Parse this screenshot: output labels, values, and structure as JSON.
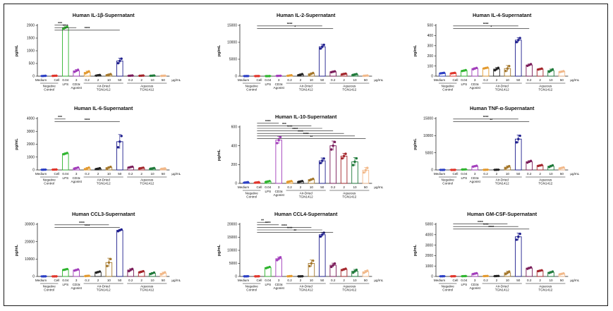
{
  "figure": {
    "unit_label": "µg/mL",
    "ylabel": "pg/mL",
    "colors": [
      "#2b3fc4",
      "#e0352b",
      "#2fb52f",
      "#a23dbb",
      "#e39a2f",
      "#222222",
      "#a5782c",
      "#1f1f8e",
      "#7a1c5a",
      "#a3242a",
      "#1f7a3a",
      "#f2b98a"
    ],
    "groups": [
      {
        "label": "Negative Control",
        "tick_labels": [
          "Medium",
          "Cell"
        ]
      },
      {
        "label": "LPS",
        "tick_labels": [
          "0.04"
        ]
      },
      {
        "label": "CD3ε Agonist",
        "tick_labels": [
          "3"
        ]
      },
      {
        "label": "Air-Dried TGN1412",
        "tick_labels": [
          "0.2",
          "2",
          "10",
          "50"
        ]
      },
      {
        "label": "Aqueous TGN1412",
        "tick_labels": [
          "0.2",
          "2",
          "10",
          "50"
        ]
      }
    ]
  },
  "chart_data": [
    {
      "type": "bar",
      "title": "Human IL-1β-Supernatant",
      "ylabel": "pg/mL",
      "unit": "µg/mL",
      "ylim": [
        0,
        2000
      ],
      "yticks": [
        0,
        500,
        1000,
        1500,
        2000
      ],
      "categories": [
        "Medium",
        "Cell",
        "0.04",
        "3",
        "0.2",
        "2",
        "10",
        "50",
        "0.2",
        "2",
        "10",
        "50"
      ],
      "values": [
        10,
        15,
        1910,
        210,
        150,
        35,
        60,
        600,
        20,
        20,
        20,
        15
      ],
      "errors": [
        5,
        5,
        40,
        50,
        50,
        15,
        25,
        110,
        5,
        5,
        5,
        5
      ],
      "significance": [
        {
          "from": 1,
          "to": 2,
          "stars": "***"
        },
        {
          "from": 1,
          "to": 3,
          "stars": "****"
        },
        {
          "from": 1,
          "to": 7,
          "stars": "****"
        }
      ]
    },
    {
      "type": "bar",
      "title": "Human IL-2-Supernatant",
      "ylabel": "pg/mL",
      "unit": "µg/mL",
      "ylim": [
        0,
        15000
      ],
      "yticks": [
        0,
        5000,
        10000,
        15000
      ],
      "categories": [
        "Medium",
        "Cell",
        "0.04",
        "3",
        "0.2",
        "2",
        "10",
        "50",
        "0.2",
        "2",
        "10",
        "50"
      ],
      "values": [
        30,
        30,
        20,
        100,
        200,
        450,
        700,
        8700,
        1300,
        650,
        500,
        150
      ],
      "errors": [
        10,
        10,
        10,
        30,
        100,
        200,
        300,
        700,
        150,
        120,
        150,
        50
      ],
      "significance": [
        {
          "from": 1,
          "to": 7,
          "stars": "****"
        },
        {
          "from": 1,
          "to": 8,
          "stars": "*"
        }
      ]
    },
    {
      "type": "bar",
      "title": "Human IL-4-Supernatant",
      "ylabel": "pg/mL",
      "unit": "µg/mL",
      "ylim": [
        0,
        500
      ],
      "yticks": [
        0,
        100,
        200,
        300,
        400,
        500
      ],
      "categories": [
        "Medium",
        "Cell",
        "0.04",
        "3",
        "0.2",
        "2",
        "10",
        "50",
        "0.2",
        "2",
        "10",
        "50"
      ],
      "values": [
        30,
        30,
        55,
        75,
        80,
        70,
        75,
        355,
        110,
        70,
        55,
        45
      ],
      "errors": [
        3,
        3,
        5,
        8,
        5,
        15,
        30,
        25,
        10,
        5,
        15,
        5
      ],
      "significance": [
        {
          "from": 1,
          "to": 7,
          "stars": "****"
        },
        {
          "from": 1,
          "to": 8,
          "stars": "*"
        }
      ]
    },
    {
      "type": "bar",
      "title": "Human IL-6-Supernatant",
      "ylabel": "pg/mL",
      "unit": "µg/mL",
      "ylim": [
        0,
        4000
      ],
      "yticks": [
        0,
        1000,
        2000,
        3000,
        4000
      ],
      "categories": [
        "Medium",
        "Cell",
        "0.04",
        "3",
        "0.2",
        "2",
        "10",
        "50",
        "0.2",
        "2",
        "10",
        "50"
      ],
      "values": [
        20,
        30,
        1270,
        150,
        120,
        100,
        180,
        2200,
        220,
        150,
        120,
        100
      ],
      "errors": [
        5,
        5,
        60,
        50,
        80,
        40,
        80,
        550,
        40,
        30,
        30,
        20
      ],
      "significance": [
        {
          "from": 1,
          "to": 2,
          "stars": "***"
        },
        {
          "from": 1,
          "to": 7,
          "stars": "****"
        }
      ]
    },
    {
      "type": "bar",
      "title": "Human IL-10-Supernatant",
      "ylabel": "pg/mL",
      "unit": "µg/mL",
      "ylim": [
        0,
        600
      ],
      "yticks": [
        0,
        200,
        400,
        600
      ],
      "categories": [
        "Medium",
        "Cell",
        "0.04",
        "3",
        "0.2",
        "2",
        "10",
        "50",
        "0.2",
        "2",
        "10",
        "50"
      ],
      "values": [
        10,
        10,
        20,
        460,
        20,
        20,
        40,
        240,
        400,
        290,
        230,
        140
      ],
      "errors": [
        3,
        3,
        5,
        40,
        5,
        5,
        10,
        30,
        50,
        30,
        45,
        30
      ],
      "significance": [
        {
          "from": 1,
          "to": 3,
          "stars": "****"
        },
        {
          "from": 1,
          "to": 6,
          "stars": "***"
        },
        {
          "from": 1,
          "to": 7,
          "stars": "****"
        },
        {
          "from": 1,
          "to": 8,
          "stars": "****"
        },
        {
          "from": 1,
          "to": 9,
          "stars": "****"
        },
        {
          "from": 1,
          "to": 10,
          "stars": "****"
        },
        {
          "from": 1,
          "to": 11,
          "stars": "**"
        }
      ]
    },
    {
      "type": "bar",
      "title": "Human TNF-α-Supernatant",
      "ylabel": "pg/mL",
      "unit": "µg/mL",
      "ylim": [
        0,
        15000
      ],
      "yticks": [
        0,
        5000,
        10000,
        15000
      ],
      "categories": [
        "Medium",
        "Cell",
        "0.04",
        "3",
        "0.2",
        "2",
        "10",
        "50",
        "0.2",
        "2",
        "10",
        "50"
      ],
      "values": [
        20,
        20,
        150,
        1100,
        50,
        50,
        800,
        9000,
        2400,
        1300,
        1100,
        600
      ],
      "errors": [
        5,
        5,
        30,
        150,
        20,
        20,
        400,
        1200,
        300,
        150,
        300,
        150
      ],
      "significance": [
        {
          "from": 1,
          "to": 7,
          "stars": "****"
        },
        {
          "from": 1,
          "to": 8,
          "stars": "**"
        }
      ]
    },
    {
      "type": "bar",
      "title": "Human CCL3-Supernatant",
      "ylabel": "pg/mL",
      "unit": "µg/mL",
      "ylim": [
        0,
        30000
      ],
      "yticks": [
        0,
        10000,
        20000,
        30000
      ],
      "categories": [
        "Medium",
        "Cell",
        "0.04",
        "3",
        "0.2",
        "2",
        "10",
        "50",
        "0.2",
        "2",
        "10",
        "50"
      ],
      "values": [
        50,
        50,
        4000,
        3700,
        300,
        2500,
        8000,
        26500,
        3700,
        2700,
        1800,
        1800
      ],
      "errors": [
        20,
        20,
        300,
        400,
        100,
        400,
        2500,
        600,
        800,
        400,
        500,
        700
      ],
      "significance": [
        {
          "from": 1,
          "to": 6,
          "stars": "****"
        },
        {
          "from": 1,
          "to": 7,
          "stars": "****"
        }
      ]
    },
    {
      "type": "bar",
      "title": "Human CCL4-Supernatant",
      "ylabel": "pg/mL",
      "unit": "µg/mL",
      "ylim": [
        0,
        20000
      ],
      "yticks": [
        0,
        5000,
        10000,
        15000,
        20000
      ],
      "categories": [
        "Medium",
        "Cell",
        "0.04",
        "3",
        "0.2",
        "2",
        "10",
        "50",
        "0.2",
        "2",
        "10",
        "50"
      ],
      "values": [
        50,
        50,
        3400,
        6800,
        100,
        50,
        5000,
        16000,
        4300,
        2700,
        2000,
        1800
      ],
      "errors": [
        20,
        20,
        300,
        700,
        50,
        20,
        1300,
        900,
        800,
        300,
        700,
        500
      ],
      "significance": [
        {
          "from": 1,
          "to": 2,
          "stars": "**"
        },
        {
          "from": 1,
          "to": 3,
          "stars": "****"
        },
        {
          "from": 1,
          "to": 6,
          "stars": "****"
        },
        {
          "from": 1,
          "to": 7,
          "stars": "****"
        },
        {
          "from": 1,
          "to": 8,
          "stars": "**"
        }
      ]
    },
    {
      "type": "bar",
      "title": "Human GM-CSF-Supernatant",
      "ylabel": "pg/mL",
      "unit": "µg/mL",
      "ylim": [
        0,
        5000
      ],
      "yticks": [
        0,
        1000,
        2000,
        3000,
        4000,
        5000
      ],
      "categories": [
        "Medium",
        "Cell",
        "0.04",
        "3",
        "0.2",
        "2",
        "10",
        "50",
        "0.2",
        "2",
        "10",
        "50"
      ],
      "values": [
        20,
        20,
        30,
        270,
        40,
        40,
        350,
        3800,
        800,
        550,
        400,
        250
      ],
      "errors": [
        5,
        5,
        10,
        50,
        10,
        10,
        150,
        350,
        80,
        50,
        80,
        50
      ],
      "significance": [
        {
          "from": 1,
          "to": 6,
          "stars": "****"
        },
        {
          "from": 1,
          "to": 7,
          "stars": "****"
        },
        {
          "from": 1,
          "to": 8,
          "stars": "****"
        }
      ]
    }
  ]
}
